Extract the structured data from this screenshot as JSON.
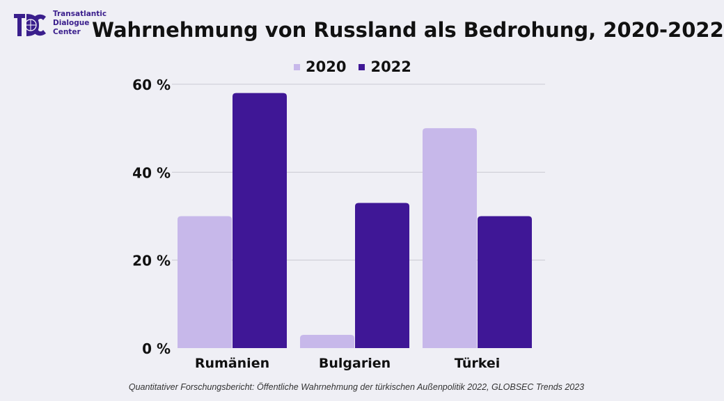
{
  "logo": {
    "lines": [
      "Transatlantic",
      "Dialogue",
      "Center"
    ],
    "color": "#3a1e8c"
  },
  "title": "Wahrnehmung von Russland als Bedrohung, 2020-2022",
  "source": "Quantitativer Forschungsbericht: Öffentliche Wahrnehmung der türkischen Außenpolitik 2022, GLOBSEC Trends 2023",
  "chart_data": {
    "type": "bar",
    "title": "Wahrnehmung von Russland als Bedrohung, 2020-2022",
    "categories": [
      "Rumänien",
      "Bulgarien",
      "Türkei"
    ],
    "series": [
      {
        "name": "2020",
        "values": [
          30,
          3,
          50
        ],
        "color": "#c7b8ea"
      },
      {
        "name": "2022",
        "values": [
          58,
          33,
          30
        ],
        "color": "#3f1796"
      }
    ],
    "yticks": [
      0,
      20,
      40,
      60
    ],
    "ytick_labels": [
      "0 %",
      "20 %",
      "40 %",
      "60 %"
    ],
    "ylim": [
      0,
      60
    ],
    "xlabel": "",
    "ylabel": "",
    "grid": true,
    "legend": "top-center"
  }
}
